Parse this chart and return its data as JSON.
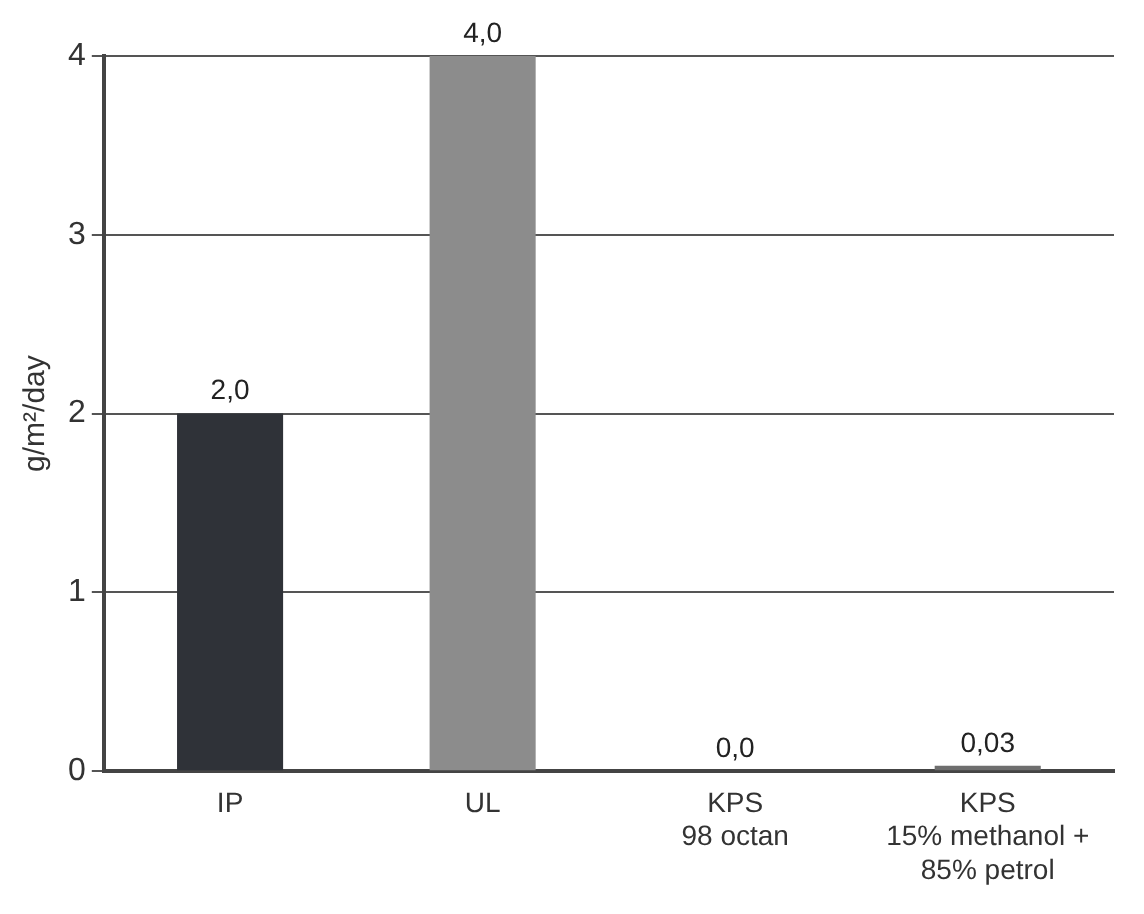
{
  "chart_data": {
    "type": "bar",
    "ylabel": "g/m²/day",
    "categories": [
      "IP",
      "UL",
      "KPS\n98 octan",
      "KPS\n15% methanol +\n85% petrol"
    ],
    "values": [
      2.0,
      4.0,
      0.0,
      0.03
    ],
    "colors": [
      "#2f3238",
      "#8c8c8c",
      "#555555",
      "#6e6e6e"
    ],
    "value_labels": [
      "2,0",
      "4,0",
      "0,0",
      "0,03"
    ],
    "ylim": [
      0,
      4
    ],
    "yticks": [
      0,
      1,
      2,
      3,
      4
    ],
    "grid": "y",
    "legend": false
  }
}
